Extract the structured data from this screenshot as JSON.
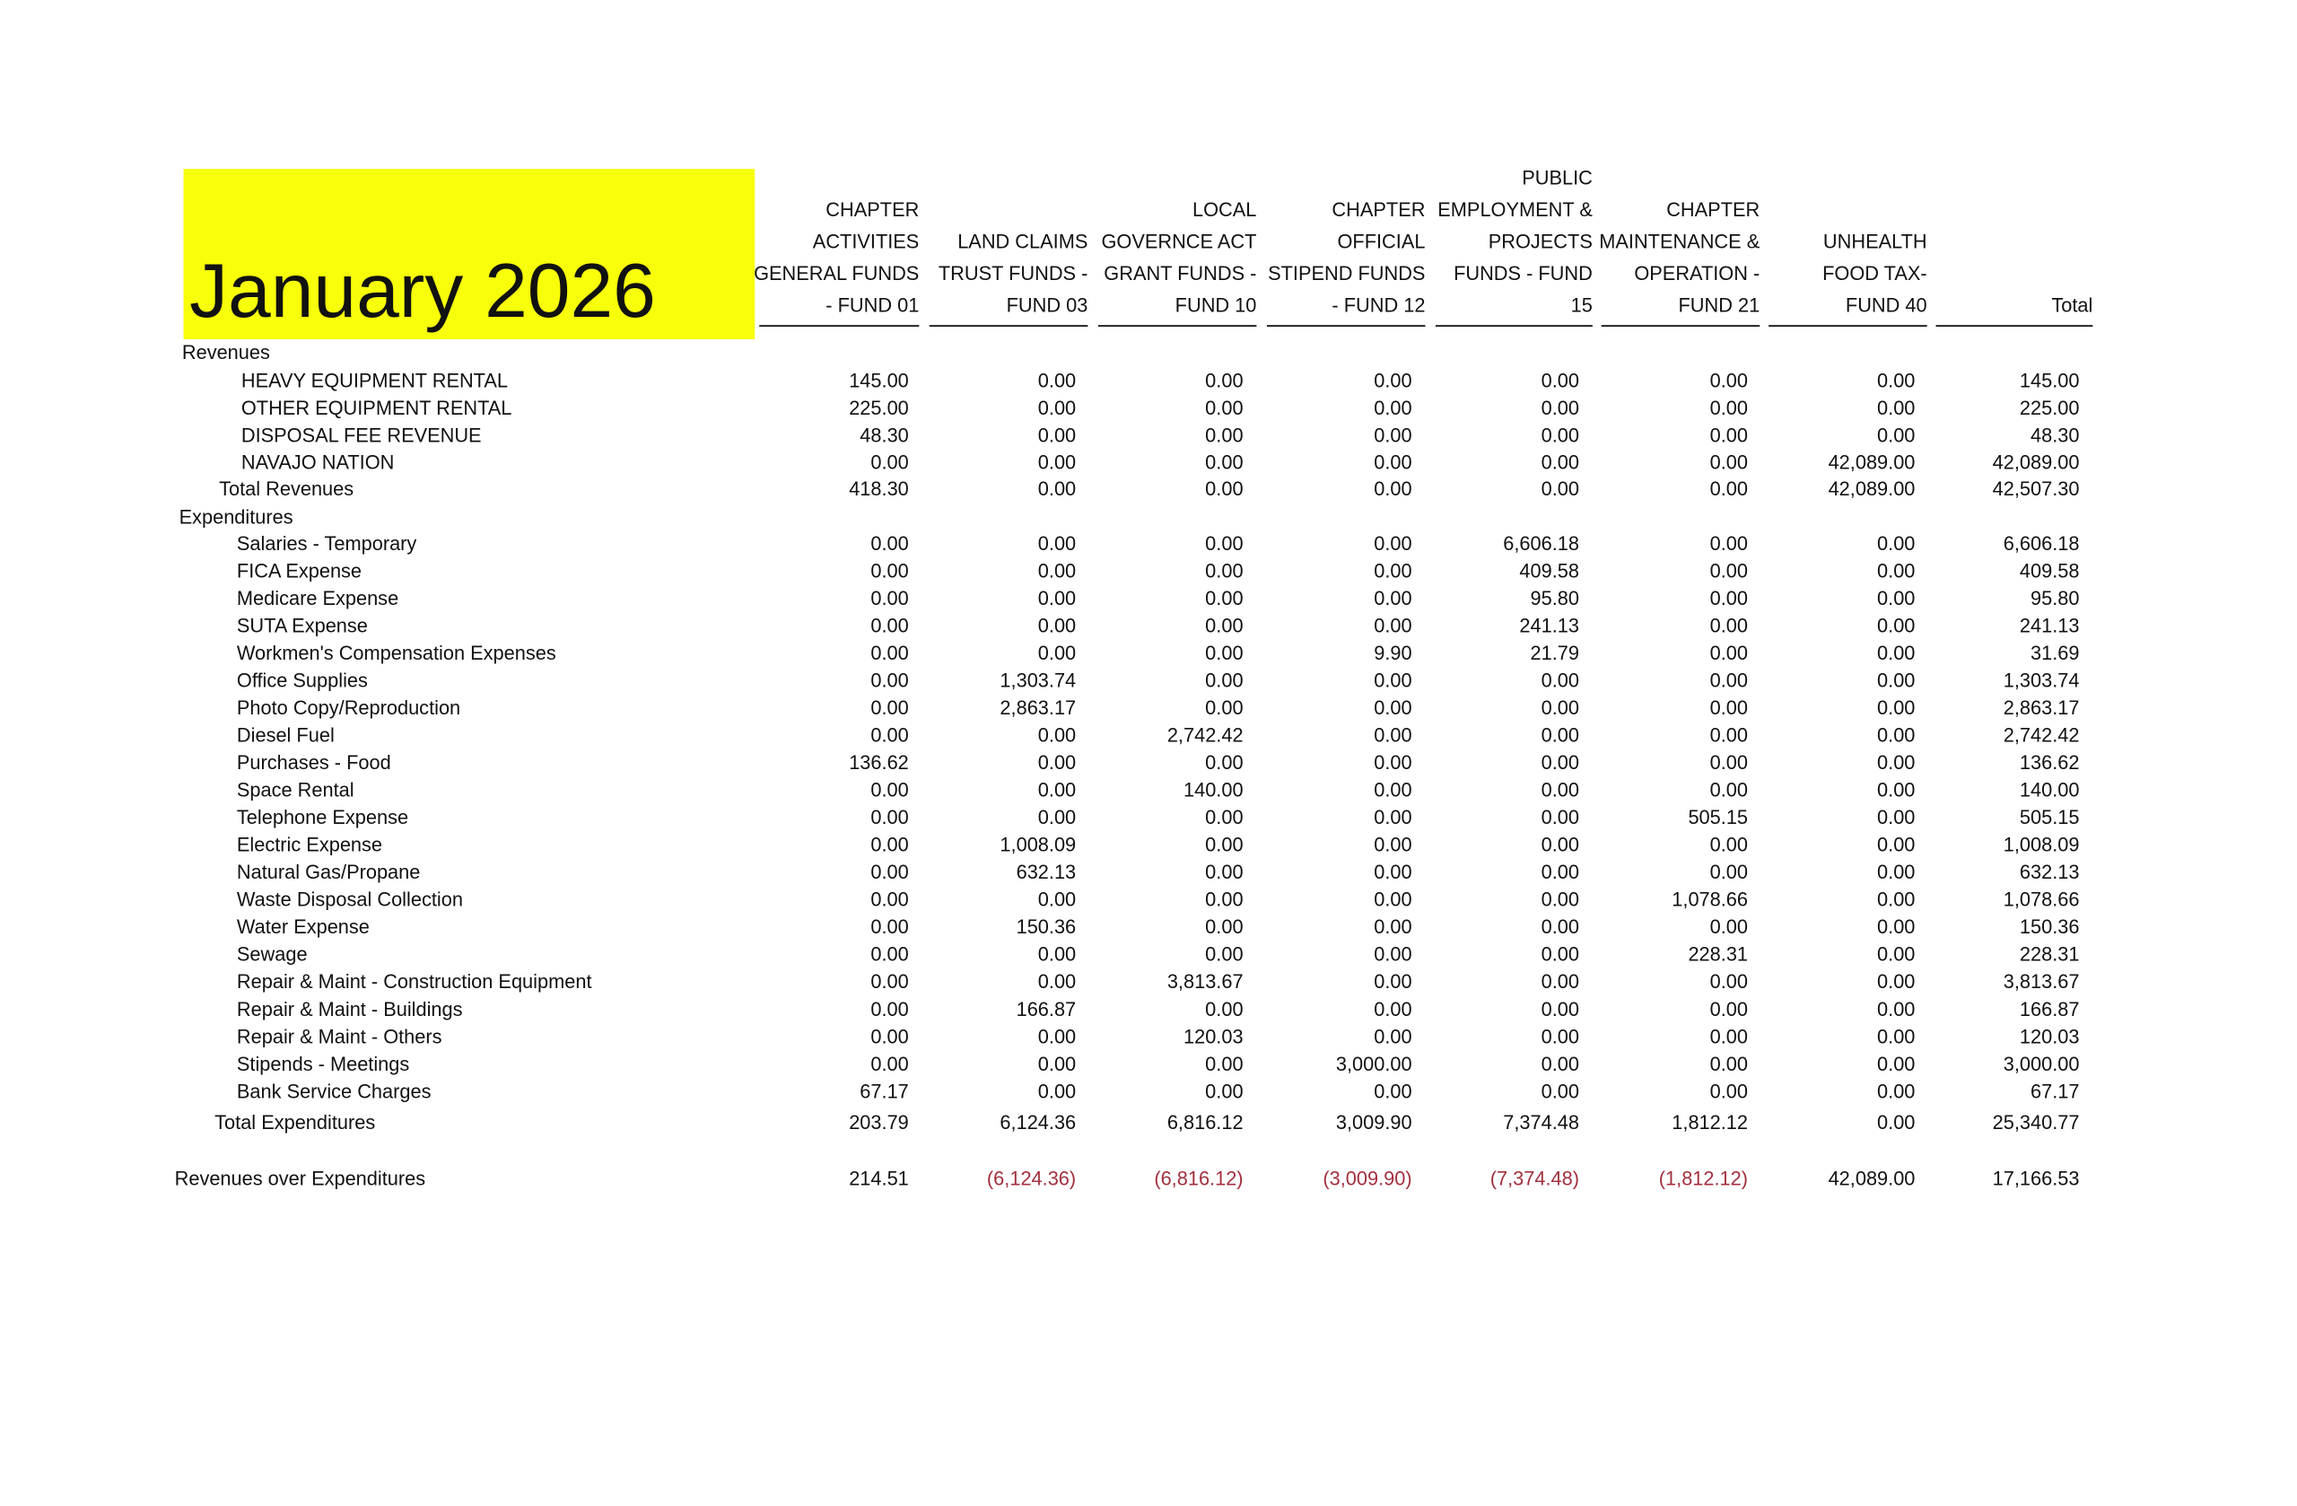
{
  "title": "January 2026",
  "columns": [
    [
      "CHAPTER",
      "ACTIVITIES",
      "GENERAL FUNDS",
      "- FUND 01"
    ],
    [
      "LAND CLAIMS",
      "TRUST FUNDS -",
      "FUND 03"
    ],
    [
      "LOCAL",
      "GOVERNCE ACT",
      "GRANT FUNDS -",
      "FUND 10"
    ],
    [
      "CHAPTER",
      "OFFICIAL",
      "STIPEND FUNDS",
      "- FUND 12"
    ],
    [
      "PUBLIC",
      "EMPLOYMENT &",
      "PROJECTS",
      "FUNDS - FUND",
      "15"
    ],
    [
      "CHAPTER",
      "MAINTENANCE &",
      "OPERATION -",
      "FUND 21"
    ],
    [
      "UNHEALTH",
      "FOOD TAX-",
      "FUND 40"
    ],
    [
      "Total"
    ]
  ],
  "revenues": {
    "label": "Revenues",
    "items": [
      {
        "label": "HEAVY EQUIPMENT RENTAL",
        "values": [
          "145.00",
          "0.00",
          "0.00",
          "0.00",
          "0.00",
          "0.00",
          "0.00",
          "145.00"
        ]
      },
      {
        "label": "OTHER EQUIPMENT RENTAL",
        "values": [
          "225.00",
          "0.00",
          "0.00",
          "0.00",
          "0.00",
          "0.00",
          "0.00",
          "225.00"
        ]
      },
      {
        "label": "DISPOSAL FEE REVENUE",
        "values": [
          "48.30",
          "0.00",
          "0.00",
          "0.00",
          "0.00",
          "0.00",
          "0.00",
          "48.30"
        ]
      },
      {
        "label": "NAVAJO NATION",
        "values": [
          "0.00",
          "0.00",
          "0.00",
          "0.00",
          "0.00",
          "0.00",
          "42,089.00",
          "42,089.00"
        ]
      }
    ],
    "total": {
      "label": "Total Revenues",
      "values": [
        "418.30",
        "0.00",
        "0.00",
        "0.00",
        "0.00",
        "0.00",
        "42,089.00",
        "42,507.30"
      ]
    }
  },
  "expenditures": {
    "label": "Expenditures",
    "items": [
      {
        "label": "Salaries - Temporary",
        "values": [
          "0.00",
          "0.00",
          "0.00",
          "0.00",
          "6,606.18",
          "0.00",
          "0.00",
          "6,606.18"
        ]
      },
      {
        "label": "FICA Expense",
        "values": [
          "0.00",
          "0.00",
          "0.00",
          "0.00",
          "409.58",
          "0.00",
          "0.00",
          "409.58"
        ]
      },
      {
        "label": "Medicare Expense",
        "values": [
          "0.00",
          "0.00",
          "0.00",
          "0.00",
          "95.80",
          "0.00",
          "0.00",
          "95.80"
        ]
      },
      {
        "label": "SUTA Expense",
        "values": [
          "0.00",
          "0.00",
          "0.00",
          "0.00",
          "241.13",
          "0.00",
          "0.00",
          "241.13"
        ]
      },
      {
        "label": "Workmen's Compensation Expenses",
        "values": [
          "0.00",
          "0.00",
          "0.00",
          "9.90",
          "21.79",
          "0.00",
          "0.00",
          "31.69"
        ]
      },
      {
        "label": "Office Supplies",
        "values": [
          "0.00",
          "1,303.74",
          "0.00",
          "0.00",
          "0.00",
          "0.00",
          "0.00",
          "1,303.74"
        ]
      },
      {
        "label": "Photo Copy/Reproduction",
        "values": [
          "0.00",
          "2,863.17",
          "0.00",
          "0.00",
          "0.00",
          "0.00",
          "0.00",
          "2,863.17"
        ]
      },
      {
        "label": "Diesel Fuel",
        "values": [
          "0.00",
          "0.00",
          "2,742.42",
          "0.00",
          "0.00",
          "0.00",
          "0.00",
          "2,742.42"
        ]
      },
      {
        "label": "Purchases - Food",
        "values": [
          "136.62",
          "0.00",
          "0.00",
          "0.00",
          "0.00",
          "0.00",
          "0.00",
          "136.62"
        ]
      },
      {
        "label": "Space Rental",
        "values": [
          "0.00",
          "0.00",
          "140.00",
          "0.00",
          "0.00",
          "0.00",
          "0.00",
          "140.00"
        ]
      },
      {
        "label": "Telephone Expense",
        "values": [
          "0.00",
          "0.00",
          "0.00",
          "0.00",
          "0.00",
          "505.15",
          "0.00",
          "505.15"
        ]
      },
      {
        "label": "Electric Expense",
        "values": [
          "0.00",
          "1,008.09",
          "0.00",
          "0.00",
          "0.00",
          "0.00",
          "0.00",
          "1,008.09"
        ]
      },
      {
        "label": "Natural Gas/Propane",
        "values": [
          "0.00",
          "632.13",
          "0.00",
          "0.00",
          "0.00",
          "0.00",
          "0.00",
          "632.13"
        ]
      },
      {
        "label": "Waste Disposal Collection",
        "values": [
          "0.00",
          "0.00",
          "0.00",
          "0.00",
          "0.00",
          "1,078.66",
          "0.00",
          "1,078.66"
        ]
      },
      {
        "label": "Water Expense",
        "values": [
          "0.00",
          "150.36",
          "0.00",
          "0.00",
          "0.00",
          "0.00",
          "0.00",
          "150.36"
        ]
      },
      {
        "label": "Sewage",
        "values": [
          "0.00",
          "0.00",
          "0.00",
          "0.00",
          "0.00",
          "228.31",
          "0.00",
          "228.31"
        ]
      },
      {
        "label": "Repair & Maint - Construction Equipment",
        "values": [
          "0.00",
          "0.00",
          "3,813.67",
          "0.00",
          "0.00",
          "0.00",
          "0.00",
          "3,813.67"
        ]
      },
      {
        "label": "Repair & Maint - Buildings",
        "values": [
          "0.00",
          "166.87",
          "0.00",
          "0.00",
          "0.00",
          "0.00",
          "0.00",
          "166.87"
        ]
      },
      {
        "label": "Repair & Maint - Others",
        "values": [
          "0.00",
          "0.00",
          "120.03",
          "0.00",
          "0.00",
          "0.00",
          "0.00",
          "120.03"
        ]
      },
      {
        "label": "Stipends - Meetings",
        "values": [
          "0.00",
          "0.00",
          "0.00",
          "3,000.00",
          "0.00",
          "0.00",
          "0.00",
          "3,000.00"
        ]
      },
      {
        "label": "Bank Service Charges",
        "values": [
          "67.17",
          "0.00",
          "0.00",
          "0.00",
          "0.00",
          "0.00",
          "0.00",
          "67.17"
        ]
      }
    ],
    "total": {
      "label": "Total Expenditures",
      "values": [
        "203.79",
        "6,124.36",
        "6,816.12",
        "3,009.90",
        "7,374.48",
        "1,812.12",
        "0.00",
        "25,340.77"
      ]
    }
  },
  "net": {
    "label": "Revenues over Expenditures",
    "values": [
      "214.51",
      "(6,124.36)",
      "(6,816.12)",
      "(3,009.90)",
      "(7,374.48)",
      "(1,812.12)",
      "42,089.00",
      "17,166.53"
    ]
  }
}
